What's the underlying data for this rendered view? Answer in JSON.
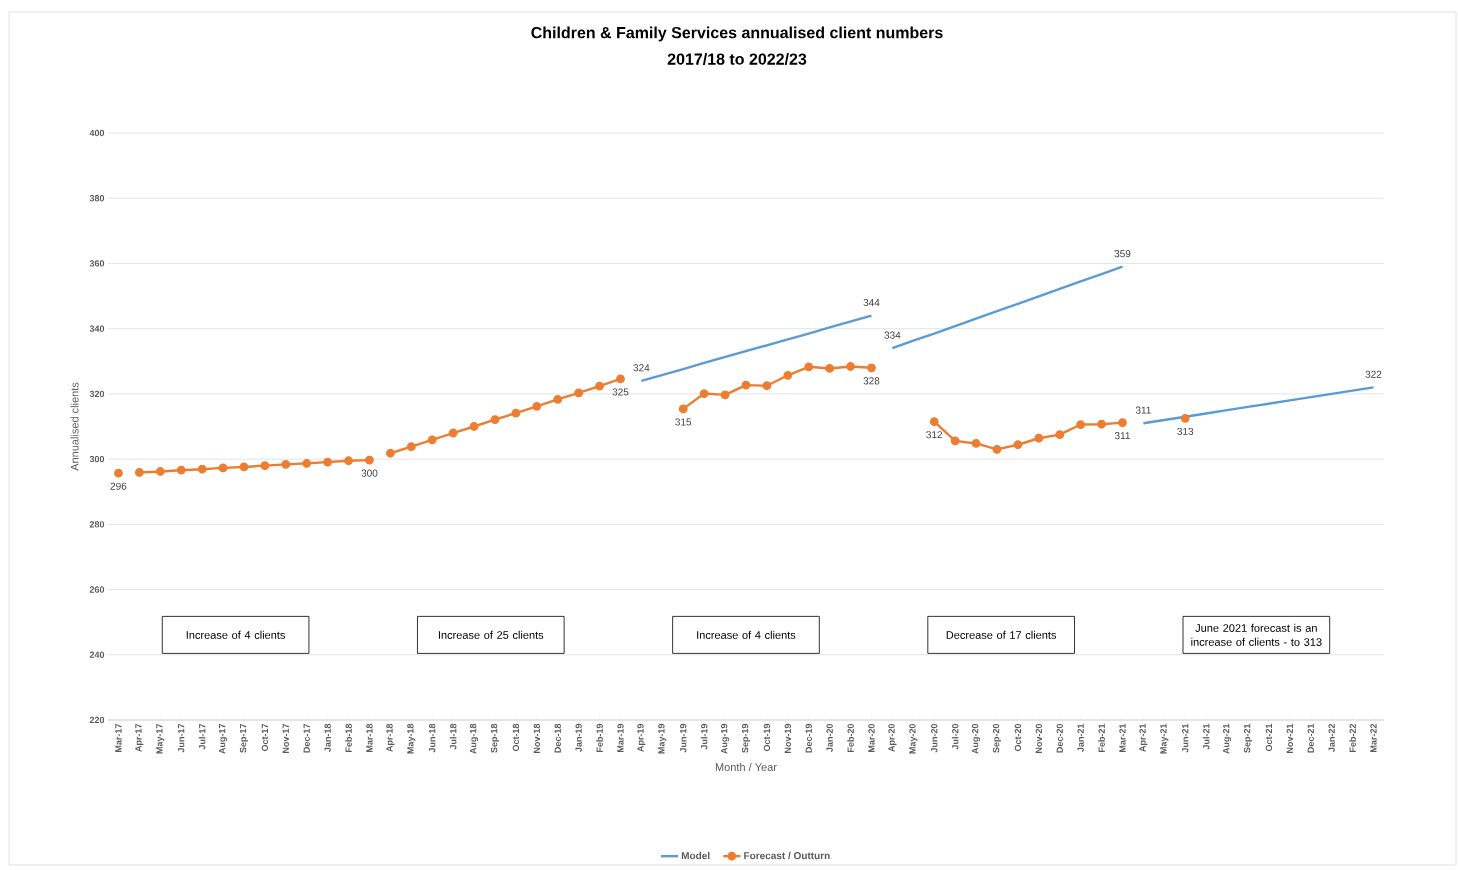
{
  "chart_data": {
    "type": "line",
    "title": "Children & Family Services annualised client numbers",
    "subtitle": "2017/18 to 2022/23",
    "xlabel": "Month / Year",
    "ylabel": "Annualised clients",
    "categories": [
      "Mar-17",
      "Apr-17",
      "May-17",
      "Jun-17",
      "Jul-17",
      "Aug-17",
      "Sep-17",
      "Oct-17",
      "Nov-17",
      "Dec-17",
      "Jan-18",
      "Feb-18",
      "Mar-18",
      "Apr-18",
      "May-18",
      "Jun-18",
      "Jul-18",
      "Aug-18",
      "Sep-18",
      "Oct-18",
      "Nov-18",
      "Dec-18",
      "Jan-19",
      "Feb-19",
      "Mar-19",
      "Apr-19",
      "May-19",
      "Jun-19",
      "Jul-19",
      "Aug-19",
      "Sep-19",
      "Oct-19",
      "Nov-19",
      "Dec-19",
      "Jan-20",
      "Feb-20",
      "Mar-20",
      "Apr-20",
      "May-20",
      "Jun-20",
      "Jul-20",
      "Aug-20",
      "Sep-20",
      "Oct-20",
      "Nov-20",
      "Dec-20",
      "Jan-21",
      "Feb-21",
      "Mar-21",
      "Apr-21",
      "May-21",
      "Jun-21",
      "Jul-21",
      "Aug-21",
      "Sep-21",
      "Oct-21",
      "Nov-21",
      "Dec-21",
      "Jan-22",
      "Feb-22",
      "Mar-22"
    ],
    "series": [
      {
        "name": "Model",
        "color": "#5b9bd5",
        "marker": "none",
        "values": [
          null,
          null,
          null,
          null,
          null,
          null,
          null,
          null,
          null,
          null,
          null,
          null,
          null,
          null,
          null,
          null,
          null,
          null,
          null,
          null,
          null,
          null,
          null,
          null,
          null,
          324,
          325.8,
          327.6,
          329.5,
          331.3,
          333.1,
          334.9,
          336.7,
          338.5,
          340.4,
          342.2,
          344,
          null,
          null,
          null,
          null,
          null,
          null,
          null,
          null,
          null,
          null,
          null,
          null,
          null,
          null,
          null,
          null,
          null,
          null,
          null,
          null,
          null,
          null,
          null,
          null
        ],
        "value_labels": [
          null,
          null,
          null,
          null,
          null,
          null,
          null,
          null,
          null,
          null,
          null,
          null,
          null,
          null,
          null,
          null,
          null,
          null,
          null,
          null,
          null,
          null,
          null,
          null,
          null,
          "324",
          null,
          null,
          null,
          null,
          null,
          null,
          null,
          null,
          null,
          null,
          "344",
          null,
          null,
          null,
          null,
          null,
          null,
          null,
          null,
          null,
          null,
          null,
          null,
          null,
          null,
          null,
          null,
          null,
          null,
          null,
          null,
          null,
          null,
          null,
          null
        ]
      },
      {
        "color": "#5b9bd5",
        "marker": "none",
        "values": [
          null,
          null,
          null,
          null,
          null,
          null,
          null,
          null,
          null,
          null,
          null,
          null,
          null,
          null,
          null,
          null,
          null,
          null,
          null,
          null,
          null,
          null,
          null,
          null,
          null,
          null,
          null,
          null,
          null,
          null,
          null,
          null,
          null,
          null,
          null,
          null,
          null,
          334,
          336.3,
          338.5,
          340.8,
          343.1,
          345.4,
          347.6,
          349.9,
          352.2,
          354.5,
          356.7,
          359,
          null,
          null,
          null,
          null,
          null,
          null,
          null,
          null,
          null,
          null,
          null,
          null
        ],
        "value_labels": [
          null,
          null,
          null,
          null,
          null,
          null,
          null,
          null,
          null,
          null,
          null,
          null,
          null,
          null,
          null,
          null,
          null,
          null,
          null,
          null,
          null,
          null,
          null,
          null,
          null,
          null,
          null,
          null,
          null,
          null,
          null,
          null,
          null,
          null,
          null,
          null,
          null,
          "334",
          null,
          null,
          null,
          null,
          null,
          null,
          null,
          null,
          null,
          null,
          "359",
          null,
          null,
          null,
          null,
          null,
          null,
          null,
          null,
          null,
          null,
          null,
          null
        ]
      },
      {
        "color": "#5b9bd5",
        "marker": "none",
        "values": [
          null,
          null,
          null,
          null,
          null,
          null,
          null,
          null,
          null,
          null,
          null,
          null,
          null,
          null,
          null,
          null,
          null,
          null,
          null,
          null,
          null,
          null,
          null,
          null,
          null,
          null,
          null,
          null,
          null,
          null,
          null,
          null,
          null,
          null,
          null,
          null,
          null,
          null,
          null,
          null,
          null,
          null,
          null,
          null,
          null,
          null,
          null,
          null,
          null,
          311,
          312,
          313,
          314,
          315,
          316,
          317,
          318,
          319,
          320,
          321,
          322
        ],
        "value_labels": [
          null,
          null,
          null,
          null,
          null,
          null,
          null,
          null,
          null,
          null,
          null,
          null,
          null,
          null,
          null,
          null,
          null,
          null,
          null,
          null,
          null,
          null,
          null,
          null,
          null,
          null,
          null,
          null,
          null,
          null,
          null,
          null,
          null,
          null,
          null,
          null,
          null,
          null,
          null,
          null,
          null,
          null,
          null,
          null,
          null,
          null,
          null,
          null,
          null,
          "311",
          null,
          null,
          null,
          null,
          null,
          null,
          null,
          null,
          null,
          null,
          "322"
        ]
      },
      {
        "name": "Forecast / Outturn",
        "color": "#ed7d31",
        "marker": "circle",
        "values": [
          null,
          295.9,
          296.2,
          296.6,
          296.9,
          297.3,
          297.6,
          298.0,
          298.4,
          298.7,
          299.1,
          299.5,
          299.7,
          null,
          null,
          null,
          null,
          null,
          null,
          null,
          null,
          null,
          null,
          null,
          null,
          null,
          null,
          null,
          null,
          null,
          null,
          null,
          null,
          null,
          null,
          null,
          null,
          null,
          null,
          null,
          null,
          null,
          null,
          null,
          null,
          null,
          null,
          null,
          null,
          null,
          null,
          null,
          null,
          null,
          null,
          null,
          null,
          null,
          null,
          null,
          null
        ],
        "value_labels": [
          null,
          null,
          null,
          null,
          null,
          null,
          null,
          null,
          null,
          null,
          null,
          null,
          "300",
          null,
          null,
          null,
          null,
          null,
          null,
          null,
          null,
          null,
          null,
          null,
          null,
          null,
          null,
          null,
          null,
          null,
          null,
          null,
          null,
          null,
          null,
          null,
          null,
          null,
          null,
          null,
          null,
          null,
          null,
          null,
          null,
          null,
          null,
          null,
          null,
          null,
          null,
          null,
          null,
          null,
          null,
          null,
          null,
          null,
          null,
          null,
          null
        ]
      },
      {
        "color": "#ed7d31",
        "marker": "circle",
        "values": [
          295.7,
          null,
          null,
          null,
          null,
          null,
          null,
          null,
          null,
          null,
          null,
          null,
          null,
          null,
          null,
          null,
          null,
          null,
          null,
          null,
          null,
          null,
          null,
          null,
          null,
          null,
          null,
          null,
          null,
          null,
          null,
          null,
          null,
          null,
          null,
          null,
          null,
          null,
          null,
          null,
          null,
          null,
          null,
          null,
          null,
          null,
          null,
          null,
          null,
          null,
          null,
          null,
          null,
          null,
          null,
          null,
          null,
          null,
          null,
          null,
          null
        ],
        "value_labels": [
          "296",
          null,
          null,
          null,
          null,
          null,
          null,
          null,
          null,
          null,
          null,
          null,
          null,
          null,
          null,
          null,
          null,
          null,
          null,
          null,
          null,
          null,
          null,
          null,
          null,
          null,
          null,
          null,
          null,
          null,
          null,
          null,
          null,
          null,
          null,
          null,
          null,
          null,
          null,
          null,
          null,
          null,
          null,
          null,
          null,
          null,
          null,
          null,
          null,
          null,
          null,
          null,
          null,
          null,
          null,
          null,
          null,
          null,
          null,
          null,
          null
        ]
      },
      {
        "color": "#ed7d31",
        "marker": "circle",
        "values": [
          null,
          null,
          null,
          null,
          null,
          null,
          null,
          null,
          null,
          null,
          null,
          null,
          null,
          301.8,
          303.8,
          305.9,
          308.0,
          310.0,
          312.1,
          314.1,
          316.2,
          318.3,
          320.3,
          322.4,
          324.6,
          null,
          null,
          null,
          null,
          null,
          null,
          null,
          null,
          null,
          null,
          null,
          null,
          null,
          null,
          null,
          null,
          null,
          null,
          null,
          null,
          null,
          null,
          null,
          null,
          null,
          null,
          null,
          null,
          null,
          null,
          null,
          null,
          null,
          null,
          null,
          null
        ],
        "value_labels": [
          null,
          null,
          null,
          null,
          null,
          null,
          null,
          null,
          null,
          null,
          null,
          null,
          null,
          null,
          null,
          null,
          null,
          null,
          null,
          null,
          null,
          null,
          null,
          null,
          "325",
          null,
          null,
          null,
          null,
          null,
          null,
          null,
          null,
          null,
          null,
          null,
          null,
          null,
          null,
          null,
          null,
          null,
          null,
          null,
          null,
          null,
          null,
          null,
          null,
          null,
          null,
          null,
          null,
          null,
          null,
          null,
          null,
          null,
          null,
          null,
          null
        ]
      },
      {
        "color": "#ed7d31",
        "marker": "circle",
        "values": [
          null,
          null,
          null,
          null,
          null,
          null,
          null,
          null,
          null,
          null,
          null,
          null,
          null,
          null,
          null,
          null,
          null,
          null,
          null,
          null,
          null,
          null,
          null,
          null,
          null,
          null,
          null,
          315.4,
          320.1,
          319.7,
          322.7,
          322.5,
          325.7,
          328.3,
          327.8,
          328.4,
          328.0,
          null,
          null,
          null,
          null,
          null,
          null,
          null,
          null,
          null,
          null,
          null,
          null,
          null,
          null,
          null,
          null,
          null,
          null,
          null,
          null,
          null,
          null,
          null,
          null
        ],
        "value_labels": [
          null,
          null,
          null,
          null,
          null,
          null,
          null,
          null,
          null,
          null,
          null,
          null,
          null,
          null,
          null,
          null,
          null,
          null,
          null,
          null,
          null,
          null,
          null,
          null,
          null,
          null,
          null,
          "315",
          null,
          null,
          null,
          null,
          null,
          null,
          null,
          null,
          "328",
          null,
          null,
          null,
          null,
          null,
          null,
          null,
          null,
          null,
          null,
          null,
          null,
          null,
          null,
          null,
          null,
          null,
          null,
          null,
          null,
          null,
          null,
          null,
          null
        ]
      },
      {
        "color": "#ed7d31",
        "marker": "circle",
        "values": [
          null,
          null,
          null,
          null,
          null,
          null,
          null,
          null,
          null,
          null,
          null,
          null,
          null,
          null,
          null,
          null,
          null,
          null,
          null,
          null,
          null,
          null,
          null,
          null,
          null,
          null,
          null,
          null,
          null,
          null,
          null,
          null,
          null,
          null,
          null,
          null,
          null,
          null,
          null,
          311.5,
          305.6,
          304.8,
          303.0,
          304.4,
          306.4,
          307.5,
          310.6,
          310.7,
          311.2,
          null,
          null,
          null,
          null,
          null,
          null,
          null,
          null,
          null,
          null,
          null,
          null
        ],
        "value_labels": [
          null,
          null,
          null,
          null,
          null,
          null,
          null,
          null,
          null,
          null,
          null,
          null,
          null,
          null,
          null,
          null,
          null,
          null,
          null,
          null,
          null,
          null,
          null,
          null,
          null,
          null,
          null,
          null,
          null,
          null,
          null,
          null,
          null,
          null,
          null,
          null,
          null,
          null,
          null,
          "312",
          null,
          null,
          null,
          null,
          null,
          null,
          null,
          null,
          "311",
          null,
          null,
          null,
          null,
          null,
          null,
          null,
          null,
          null,
          null,
          null,
          null
        ]
      },
      {
        "color": "#ed7d31",
        "marker": "circle",
        "values": [
          null,
          null,
          null,
          null,
          null,
          null,
          null,
          null,
          null,
          null,
          null,
          null,
          null,
          null,
          null,
          null,
          null,
          null,
          null,
          null,
          null,
          null,
          null,
          null,
          null,
          null,
          null,
          null,
          null,
          null,
          null,
          null,
          null,
          null,
          null,
          null,
          null,
          null,
          null,
          null,
          null,
          null,
          null,
          null,
          null,
          null,
          null,
          null,
          null,
          null,
          null,
          312.5,
          null,
          null,
          null,
          null,
          null,
          null,
          null,
          null,
          null
        ],
        "value_labels": [
          null,
          null,
          null,
          null,
          null,
          null,
          null,
          null,
          null,
          null,
          null,
          null,
          null,
          null,
          null,
          null,
          null,
          null,
          null,
          null,
          null,
          null,
          null,
          null,
          null,
          null,
          null,
          null,
          null,
          null,
          null,
          null,
          null,
          null,
          null,
          null,
          null,
          null,
          null,
          null,
          null,
          null,
          null,
          null,
          null,
          null,
          null,
          null,
          null,
          null,
          null,
          "313",
          null,
          null,
          null,
          null,
          null,
          null,
          null,
          null,
          null
        ]
      }
    ],
    "ylim": [
      220,
      400
    ],
    "yticks": [
      220,
      240,
      260,
      280,
      300,
      320,
      340,
      360,
      380,
      400
    ],
    "grid": "y",
    "legend": "bottom",
    "line_style": "solid",
    "annotations": [
      "Increase of 4 clients",
      "Increase of 25 clients",
      "Increase of 4 clients",
      "Decrease of 17 clients",
      "June 2021 forecast is an increase of clients - to 313"
    ]
  }
}
